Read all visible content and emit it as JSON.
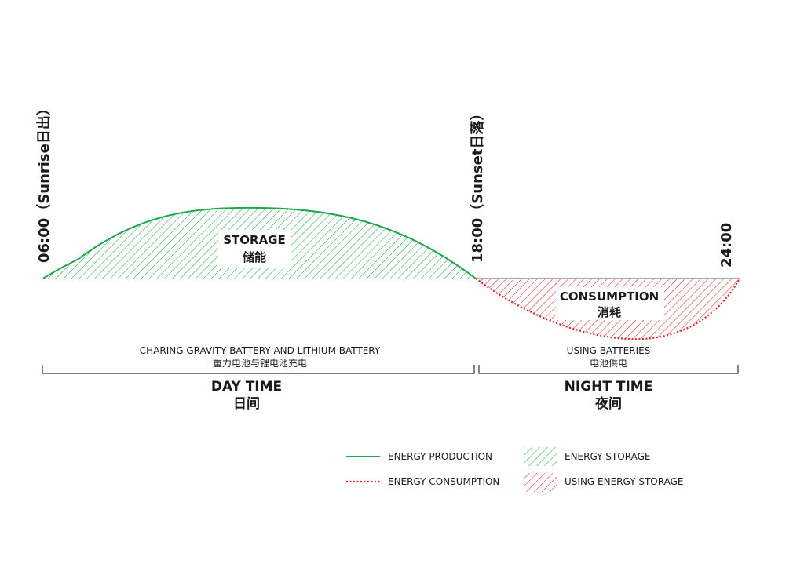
{
  "colors": {
    "production": "#1ea84a",
    "consumption": "#e0242b",
    "text": "#1a1a1a"
  },
  "times": {
    "sunrise": "06:00（Sunrise日出）",
    "sunset": "18:00（Sunset日落）",
    "midnight": "24:00"
  },
  "areas": {
    "storage_en": "STORAGE",
    "storage_cn": "储能",
    "consumption_en": "CONSUMPTION",
    "consumption_cn": "消耗"
  },
  "periods": {
    "day_desc_en": "CHARING GRAVITY BATTERY AND LITHIUM BATTERY",
    "day_desc_cn": "重力电池与锂电池充电",
    "night_desc_en": "USING BATTERIES",
    "night_desc_cn": "电池供电",
    "day_en": "DAY TIME",
    "day_cn": "日间",
    "night_en": "NIGHT TIME",
    "night_cn": "夜间"
  },
  "legend": {
    "production": "ENERGY PRODUCTION",
    "consumption": "ENERGY CONSUMPTION",
    "storage": "ENERGY STORAGE",
    "using_storage": "USING ENERGY STORAGE"
  }
}
